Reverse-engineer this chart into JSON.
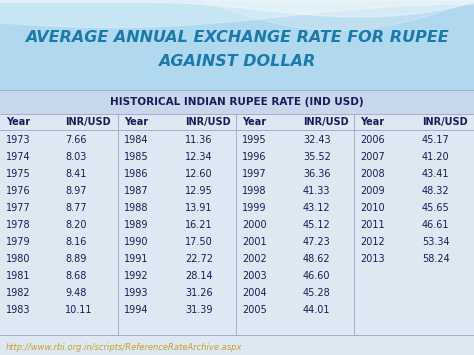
{
  "title_line1": "AVERAGE ANNUAL EXCHANGE RATE FOR RUPEE",
  "title_line2": "AGAINST DOLLAR",
  "subtitle": "HISTORICAL INDIAN RUPEE RATE (IND USD)",
  "columns": [
    "Year",
    "INR/USD",
    "Year",
    "INR/USD",
    "Year",
    "INR/USD",
    "Year",
    "INR/USD"
  ],
  "rows": [
    [
      "1973",
      "7.66",
      "1984",
      "11.36",
      "1995",
      "32.43",
      "2006",
      "45.17"
    ],
    [
      "1974",
      "8.03",
      "1985",
      "12.34",
      "1996",
      "35.52",
      "2007",
      "41.20"
    ],
    [
      "1975",
      "8.41",
      "1986",
      "12.60",
      "1997",
      "36.36",
      "2008",
      "43.41"
    ],
    [
      "1976",
      "8.97",
      "1987",
      "12.95",
      "1998",
      "41.33",
      "2009",
      "48.32"
    ],
    [
      "1977",
      "8.77",
      "1988",
      "13.91",
      "1999",
      "43.12",
      "2010",
      "45.65"
    ],
    [
      "1978",
      "8.20",
      "1989",
      "16.21",
      "2000",
      "45.12",
      "2011",
      "46.61"
    ],
    [
      "1979",
      "8.16",
      "1990",
      "17.50",
      "2001",
      "47.23",
      "2012",
      "53.34"
    ],
    [
      "1980",
      "8.89",
      "1991",
      "22.72",
      "2002",
      "48.62",
      "2013",
      "58.24"
    ],
    [
      "1981",
      "8.68",
      "1992",
      "28.14",
      "2003",
      "46.60",
      "",
      ""
    ],
    [
      "1982",
      "9.48",
      "1993",
      "31.26",
      "2004",
      "45.28",
      "",
      ""
    ],
    [
      "1983",
      "10.11",
      "1994",
      "31.39",
      "2005",
      "44.01",
      "",
      ""
    ]
  ],
  "link": "http://www.rbi.org.in/scripts/ReferenceRateArchive.aspx",
  "title_color": "#1a7aaa",
  "subtitle_color": "#1a1a5a",
  "header_color": "#1a1a5a",
  "data_color": "#1a1a5a",
  "table_bg": "#dde8f3",
  "subtitle_bg": "#c8d8ec",
  "top_bg": "#b0d8ee",
  "link_color": "#c8a020",
  "wave1_color": "#d8eef8",
  "wave2_color": "#ffffff"
}
